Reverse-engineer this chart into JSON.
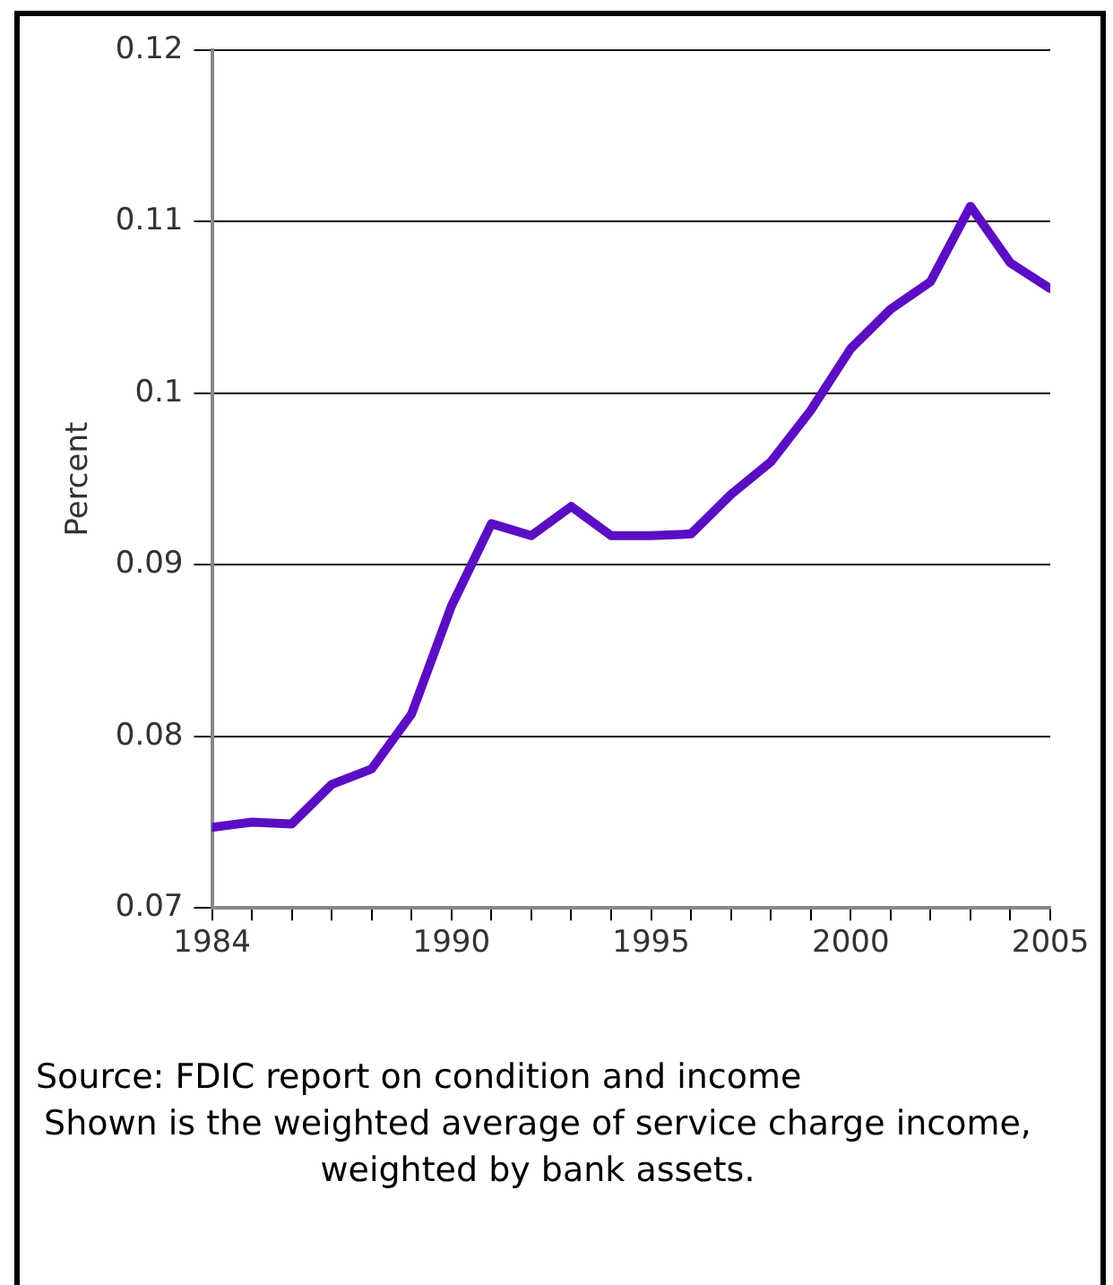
{
  "chart_data": {
    "type": "line",
    "ylabel": "Percent",
    "x": [
      1984,
      1985,
      1986,
      1987,
      1988,
      1989,
      1990,
      1991,
      1992,
      1993,
      1994,
      1995,
      1996,
      1997,
      1998,
      1999,
      2000,
      2001,
      2002,
      2003,
      2004,
      2005
    ],
    "series": [
      {
        "color": "#5b0dc4",
        "values": [
          0.0747,
          0.075,
          0.0749,
          0.0772,
          0.0781,
          0.0813,
          0.0876,
          0.0924,
          0.0917,
          0.0934,
          0.0917,
          0.0917,
          0.0918,
          0.0941,
          0.096,
          0.099,
          0.1026,
          0.1049,
          0.1065,
          0.1109,
          0.1076,
          0.1061
        ]
      }
    ],
    "xlim": [
      1984,
      2005
    ],
    "xticks": [
      1984,
      {
        "value": 1985,
        "label": null
      },
      {
        "value": 1986,
        "label": null
      },
      {
        "value": 1987,
        "label": null
      },
      {
        "value": 1988,
        "label": null
      },
      {
        "value": 1989,
        "label": null
      },
      1990,
      {
        "value": 1991,
        "label": null
      },
      {
        "value": 1992,
        "label": null
      },
      {
        "value": 1993,
        "label": null
      },
      {
        "value": 1994,
        "label": null
      },
      1995,
      {
        "value": 1996,
        "label": null
      },
      {
        "value": 1997,
        "label": null
      },
      {
        "value": 1998,
        "label": null
      },
      {
        "value": 1999,
        "label": null
      },
      2000,
      {
        "value": 2001,
        "label": null
      },
      {
        "value": 2002,
        "label": null
      },
      {
        "value": 2003,
        "label": null
      },
      {
        "value": 2004,
        "label": null
      },
      2005
    ],
    "ylim": [
      0.07,
      0.12
    ],
    "yticks": [
      0.07,
      0.08,
      0.09,
      0.1,
      0.11,
      0.12
    ],
    "grid": "y",
    "legend": false,
    "marker": "none",
    "line_style": "solid",
    "annotations": [
      "Source: FDIC report on condition and income",
      "Shown is the weighted average of service charge income, weighted by bank assets."
    ]
  }
}
